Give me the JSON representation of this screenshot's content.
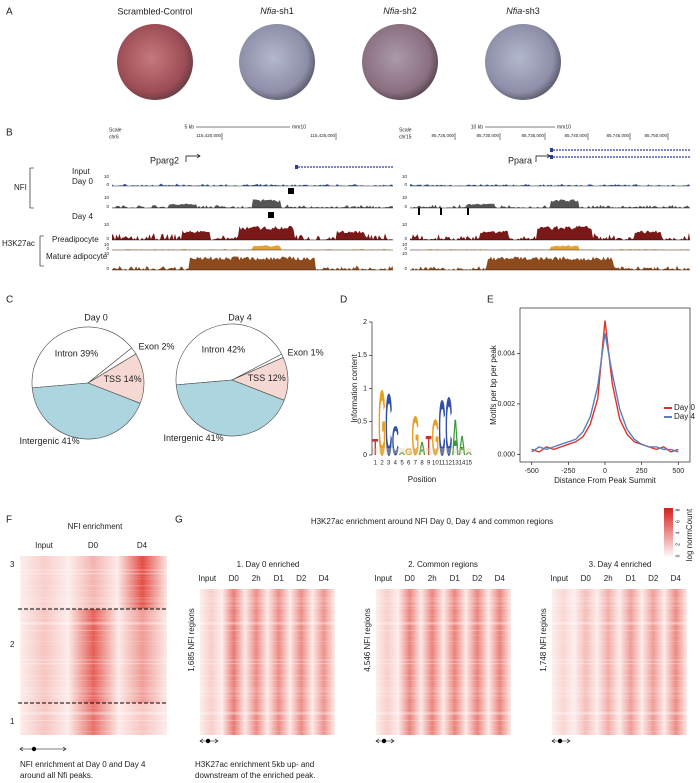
{
  "panel_labels": [
    "A",
    "B",
    "C",
    "D",
    "E",
    "F",
    "G"
  ],
  "panel_a": {
    "plates": [
      {
        "label": "Scrambled-Control"
      },
      {
        "gene": "Nfia",
        "suffix": "-sh1"
      },
      {
        "gene": "Nfia",
        "suffix": "-sh2"
      },
      {
        "gene": "Nfia",
        "suffix": "-sh3"
      }
    ]
  },
  "panel_b": {
    "left": {
      "scale_label": "Scale",
      "chrom": "chr6",
      "scale_bar": "5 kb",
      "assembly": "mm10",
      "coords": [
        "115,420,000",
        "115,425,000"
      ],
      "gene": "Pparg2"
    },
    "right": {
      "scale_label": "Scale",
      "chrom": "chr15",
      "scale_bar": "10 kb",
      "assembly": "mm10",
      "coords": [
        "85,725,000",
        "85,730,000",
        "85,735,000",
        "85,740,000",
        "85,745,000",
        "85,750,000"
      ],
      "gene": "Ppara"
    },
    "groups": [
      "NFI",
      "H3K27ac"
    ],
    "tracks": [
      "Input",
      "Day 0",
      "Day 4",
      "Preadipocyte",
      "Mature adipocyte"
    ],
    "track_max": "10",
    "track_min": "0"
  },
  "chart_data": [
    {
      "type": "pie",
      "title": "Day 0",
      "categories": [
        "Intron",
        "Exon",
        "TSS",
        "Intergenic"
      ],
      "values": [
        39,
        2,
        14,
        41
      ],
      "value_labels": [
        "39%",
        "2%",
        "14%",
        "41%"
      ],
      "colors": [
        "#ffffff",
        "#ffffff",
        "#f6d8d2",
        "#acd5e0"
      ],
      "startangle": -95
    },
    {
      "type": "pie",
      "title": "Day 4",
      "categories": [
        "Intron",
        "Exon",
        "TSS",
        "Intergenic"
      ],
      "values": [
        42,
        1,
        12,
        41
      ],
      "value_labels": [
        "42%",
        "1%",
        "12%",
        "41%"
      ],
      "colors": [
        "#ffffff",
        "#ffffff",
        "#f6d8d2",
        "#acd5e0"
      ],
      "startangle": -95
    },
    {
      "type": "logo",
      "y_label": "Information content",
      "x_label": "Position",
      "categories": [
        "1",
        "2",
        "3",
        "4",
        "5",
        "6",
        "7",
        "8",
        "9",
        "10",
        "11",
        "12",
        "13",
        "14",
        "15"
      ],
      "letters": [
        "T",
        "G",
        "C",
        "C",
        "A",
        "G",
        "G",
        "A",
        "T",
        "G",
        "C",
        "C",
        "A",
        "A",
        "A"
      ],
      "values": [
        0.25,
        1.0,
        0.95,
        0.45,
        0.05,
        0.1,
        0.6,
        0.2,
        0.3,
        0.55,
        0.85,
        0.9,
        0.55,
        0.3,
        0.05
      ],
      "letter_colors": {
        "A": "#3a9a3a",
        "C": "#2f4fa8",
        "G": "#e8a020",
        "T": "#d03030"
      },
      "ylim": [
        0,
        2
      ],
      "yticks": [
        0,
        0.5,
        1,
        1.5,
        2
      ]
    },
    {
      "type": "line",
      "x_label": "Distance From Peak Summit",
      "y_label": "Motifs per bp per peak",
      "x": [
        -500,
        -450,
        -400,
        -350,
        -300,
        -250,
        -200,
        -150,
        -100,
        -50,
        0,
        50,
        100,
        150,
        200,
        250,
        300,
        350,
        400,
        450,
        500
      ],
      "series": [
        {
          "name": "Day 0",
          "color": "#e0302a",
          "values": [
            0.0002,
            0.0001,
            0.0003,
            0.0002,
            0.0003,
            0.0004,
            0.0005,
            0.0007,
            0.0012,
            0.0022,
            0.0053,
            0.0028,
            0.0014,
            0.0008,
            0.0005,
            0.0004,
            0.0003,
            0.0002,
            0.0003,
            0.0001,
            0.0002
          ]
        },
        {
          "name": "Day 4",
          "color": "#5a7fc0",
          "values": [
            0.0001,
            0.0003,
            0.0002,
            0.0003,
            0.0004,
            0.0005,
            0.0006,
            0.0009,
            0.0015,
            0.0027,
            0.0048,
            0.0032,
            0.0018,
            0.001,
            0.0006,
            0.0004,
            0.0003,
            0.0003,
            0.0002,
            0.0002,
            0.0001
          ]
        }
      ],
      "xlim": [
        -580,
        580
      ],
      "xticks": [
        -500,
        -250,
        0,
        250,
        500
      ],
      "ylim": [
        -0.0003,
        0.0058
      ],
      "yticks": [
        {
          "value": 0,
          "label": "0.000"
        },
        {
          "value": 0.002,
          "label": "0.002"
        },
        {
          "value": 0.004,
          "label": "0.004"
        }
      ],
      "legend": "right"
    }
  ],
  "panel_f": {
    "title": "NFI enrichment",
    "columns": [
      "Input",
      "D0",
      "D4"
    ],
    "clusters": [
      "3",
      "2",
      "1"
    ],
    "caption": [
      "NFI enrichment at Day 0 and Day 4",
      "around all Nfi peaks."
    ]
  },
  "panel_g": {
    "title": "H3K27ac enrichment around NFI Day 0, Day 4 and common regions",
    "colorbar_label": "log normCount",
    "colorbar_ticks": [
      0,
      2,
      4,
      6,
      8
    ],
    "columns": [
      "Input",
      "D0",
      "2h",
      "D1",
      "D2",
      "D4"
    ],
    "subpanels": [
      {
        "title": "1. Day 0 enriched",
        "rows": "1,685 NFI regions"
      },
      {
        "title": "2. Common regions",
        "rows": "4,546 NFI regions"
      },
      {
        "title": "3. Day 4 enriched",
        "rows": "1,748 NFI regions"
      }
    ],
    "caption": [
      "H3K27ac enrichment 5kb up- and",
      "downstream of the enriched peak."
    ]
  }
}
